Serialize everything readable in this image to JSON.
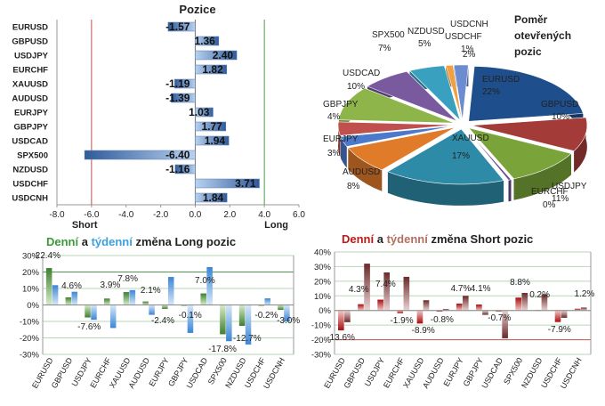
{
  "colors": {
    "red_line": "#c0504d",
    "green_line": "#4e9a4e",
    "grid": "#a8c9a8",
    "long_green": "#4f8f2f",
    "weekly_blue": "#5aa0e0",
    "short_red": "#b01010",
    "short_weekly": "#8b4a4a"
  },
  "chart_data": [
    {
      "type": "bar",
      "orientation": "horizontal",
      "title": "Pozice",
      "categories": [
        "EURUSD",
        "GBPUSD",
        "USDJPY",
        "EURCHF",
        "XAUUSD",
        "AUDUSD",
        "EURJPY",
        "GBPJPY",
        "USDCAD",
        "SPX500",
        "NZDUSD",
        "USDCHF",
        "USDCNH"
      ],
      "values": [
        -1.57,
        1.36,
        2.4,
        1.82,
        -1.19,
        -1.39,
        1.03,
        1.77,
        1.94,
        -6.4,
        -1.16,
        3.71,
        1.84
      ],
      "value_labels": [
        "-1.57",
        "1.36",
        "2.40",
        "1.82",
        "-1.19",
        "-1.39",
        "1.03",
        "1.77",
        "1.94",
        "-6.40",
        "-1.16",
        "3.71",
        "1.84"
      ],
      "xlim": [
        -8,
        6
      ],
      "xticks": [
        "-8.0",
        "-6.0",
        "-4.0",
        "-2.0",
        "0.0",
        "2.0",
        "4.0",
        "6.0"
      ],
      "reference_lines": [
        {
          "value": -6,
          "label": "Short"
        },
        {
          "value": 4,
          "label": "Long"
        }
      ]
    },
    {
      "type": "pie",
      "title": "Poměr otevřených pozic",
      "slices": [
        {
          "label": "EURUSD",
          "pct": "22%",
          "value": 22,
          "color": "#1f4e8c"
        },
        {
          "label": "GBPUSD",
          "pct": "10%",
          "value": 10,
          "color": "#a33b38"
        },
        {
          "label": "USDJPY",
          "pct": "11%",
          "value": 11,
          "color": "#7aa33a"
        },
        {
          "label": "EURCHF",
          "pct": "0%",
          "value": 0.4,
          "color": "#6a4c93"
        },
        {
          "label": "XAUUSD",
          "pct": "17%",
          "value": 17,
          "color": "#2e8ba8"
        },
        {
          "label": "AUDUSD",
          "pct": "8%",
          "value": 8,
          "color": "#e07b2a"
        },
        {
          "label": "EURJPY",
          "pct": "3%",
          "value": 3,
          "color": "#4a7ac9"
        },
        {
          "label": "GBPJPY",
          "pct": "4%",
          "value": 4,
          "color": "#c0504d"
        },
        {
          "label": "USDCAD",
          "pct": "10%",
          "value": 10,
          "color": "#8db54a"
        },
        {
          "label": "SPX500",
          "pct": "7%",
          "value": 7,
          "color": "#7a5a9e"
        },
        {
          "label": "NZDUSD",
          "pct": "5%",
          "value": 5,
          "color": "#3aa0c0"
        },
        {
          "label": "USDCHF",
          "pct": "1%",
          "value": 1,
          "color": "#f0a040"
        },
        {
          "label": "USDCNH",
          "pct": "2%",
          "value": 2,
          "color": "#6b8cd0"
        }
      ]
    },
    {
      "type": "bar",
      "title_parts": [
        {
          "text": "Denní",
          "color": "#3a9a3a"
        },
        {
          "text": " a ",
          "color": "#222222"
        },
        {
          "text": "týdenní",
          "color": "#3aa0e0"
        },
        {
          "text": " změna Long pozic",
          "color": "#222222"
        }
      ],
      "categories": [
        "EURUSD",
        "GBPUSD",
        "USDJPY",
        "EURCHF",
        "XAUUSD",
        "AUDUSD",
        "EURJPY",
        "GBPJPY",
        "USDCAD",
        "SPX500",
        "NZDUSD",
        "USDCHF",
        "USDCNH"
      ],
      "series": [
        {
          "name": "Denní",
          "values": [
            22.4,
            4.6,
            -7.6,
            3.9,
            7.8,
            2.1,
            -2.4,
            -0.1,
            7.0,
            -17.8,
            -12.7,
            -0.2,
            -3.0
          ]
        },
        {
          "name": "Týdenní",
          "values": [
            12,
            8,
            -9,
            -14,
            9,
            -6,
            17,
            -17,
            23,
            -22,
            -24,
            4,
            -10
          ]
        }
      ],
      "data_labels": [
        "22.4%",
        "4.6%",
        "-7.6%",
        "3.9%",
        "7.8%",
        "2.1%",
        "-2.4%",
        "-0.1%",
        "7.0%",
        "-17.8%",
        "-12.7%",
        "-0.2%",
        "-3.0%"
      ],
      "ylim": [
        -30,
        30
      ],
      "yticks": [
        "30%",
        "20%",
        "10%",
        "0%",
        "-10%",
        "-20%",
        "-30%"
      ]
    },
    {
      "type": "bar",
      "title_parts": [
        {
          "text": "Denní",
          "color": "#c01818"
        },
        {
          "text": " a ",
          "color": "#222222"
        },
        {
          "text": "týdenní",
          "color": "#b07060"
        },
        {
          "text": " změna Short pozic",
          "color": "#222222"
        }
      ],
      "categories": [
        "EURUSD",
        "GBPUSD",
        "USDJPY",
        "EURCHF",
        "XAUUSD",
        "AUDUSD",
        "EURJPY",
        "GBPJPY",
        "USDCAD",
        "SPX500",
        "NZDUSD",
        "USDCHF",
        "USDCNH"
      ],
      "series": [
        {
          "name": "Denní",
          "values": [
            -13.6,
            4.3,
            7.4,
            -1.9,
            -8.9,
            -0.8,
            4.7,
            4.1,
            -0.7,
            8.8,
            0.2,
            -7.9,
            1.2
          ]
        },
        {
          "name": "Týdenní",
          "values": [
            -8,
            32,
            26,
            23,
            7,
            1,
            10,
            -3,
            -19,
            12,
            11,
            -5,
            2
          ]
        }
      ],
      "data_labels": [
        "-13.6%",
        "4.3%",
        "7.4%",
        "-1.9%",
        "-8.9%",
        "-0.8%",
        "4.7%",
        "4.1%",
        "-0.7%",
        "8.8%",
        "0.2%",
        "-7.9%",
        "1.2%"
      ],
      "ylim": [
        -30,
        40
      ],
      "yticks": [
        "40%",
        "30%",
        "20%",
        "10%",
        "0%",
        "-10%",
        "-20%",
        "-30%"
      ]
    }
  ]
}
